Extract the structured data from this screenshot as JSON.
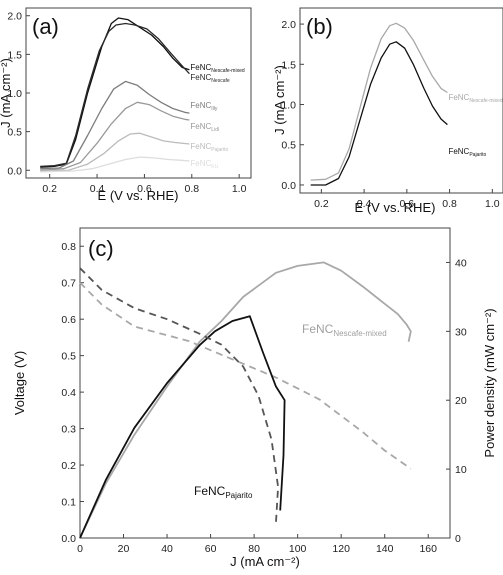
{
  "chart_data": [
    {
      "panel": "(a)",
      "type": "line",
      "xlabel": "E (V vs. RHE)",
      "ylabel": "J (mA cm⁻²)",
      "xlim": [
        0.1,
        1.05
      ],
      "ylim": [
        -0.1,
        2.1
      ],
      "xticks": [
        "0.2",
        "0.4",
        "0.6",
        "0.8",
        "1.0"
      ],
      "yticks": [
        "0.0",
        "0.5",
        "1.0",
        "1.5",
        "2.0"
      ],
      "series": [
        {
          "base": "FeNC",
          "sub": "Nescafe-mixed",
          "color": "#111111",
          "points": [
            [
              0.16,
              0.04
            ],
            [
              0.22,
              0.05
            ],
            [
              0.27,
              0.08
            ],
            [
              0.31,
              0.4
            ],
            [
              0.36,
              1.0
            ],
            [
              0.42,
              1.6
            ],
            [
              0.46,
              1.9
            ],
            [
              0.49,
              1.97
            ],
            [
              0.53,
              1.95
            ],
            [
              0.58,
              1.85
            ],
            [
              0.63,
              1.75
            ],
            [
              0.68,
              1.6
            ],
            [
              0.72,
              1.45
            ],
            [
              0.76,
              1.33
            ],
            [
              0.79,
              1.3
            ]
          ]
        },
        {
          "base": "FeNC",
          "sub": "Nescafe",
          "color": "#2a2a2a",
          "points": [
            [
              0.16,
              0.05
            ],
            [
              0.22,
              0.06
            ],
            [
              0.27,
              0.09
            ],
            [
              0.31,
              0.45
            ],
            [
              0.36,
              1.05
            ],
            [
              0.41,
              1.55
            ],
            [
              0.45,
              1.8
            ],
            [
              0.48,
              1.88
            ],
            [
              0.52,
              1.9
            ],
            [
              0.56,
              1.88
            ],
            [
              0.61,
              1.83
            ],
            [
              0.66,
              1.7
            ],
            [
              0.71,
              1.52
            ],
            [
              0.76,
              1.35
            ],
            [
              0.79,
              1.25
            ]
          ]
        },
        {
          "base": "FeNC",
          "sub": "Illy",
          "color": "#7d7d7d",
          "points": [
            [
              0.16,
              0.02
            ],
            [
              0.24,
              0.03
            ],
            [
              0.3,
              0.12
            ],
            [
              0.36,
              0.45
            ],
            [
              0.42,
              0.8
            ],
            [
              0.47,
              1.05
            ],
            [
              0.52,
              1.15
            ],
            [
              0.57,
              1.1
            ],
            [
              0.62,
              0.98
            ],
            [
              0.67,
              0.88
            ],
            [
              0.72,
              0.8
            ],
            [
              0.77,
              0.75
            ],
            [
              0.79,
              0.74
            ]
          ]
        },
        {
          "base": "FeNC",
          "sub": "Lidl",
          "color": "#999999",
          "points": [
            [
              0.16,
              0.0
            ],
            [
              0.26,
              0.02
            ],
            [
              0.33,
              0.1
            ],
            [
              0.4,
              0.35
            ],
            [
              0.46,
              0.6
            ],
            [
              0.52,
              0.8
            ],
            [
              0.57,
              0.88
            ],
            [
              0.62,
              0.85
            ],
            [
              0.67,
              0.77
            ],
            [
              0.72,
              0.7
            ],
            [
              0.77,
              0.66
            ],
            [
              0.79,
              0.65
            ]
          ]
        },
        {
          "base": "FeNC",
          "sub": "Pajarito",
          "color": "#bbbbbb",
          "points": [
            [
              0.16,
              -0.01
            ],
            [
              0.28,
              0.0
            ],
            [
              0.36,
              0.08
            ],
            [
              0.43,
              0.22
            ],
            [
              0.49,
              0.38
            ],
            [
              0.54,
              0.47
            ],
            [
              0.58,
              0.48
            ],
            [
              0.63,
              0.43
            ],
            [
              0.68,
              0.38
            ],
            [
              0.73,
              0.36
            ],
            [
              0.79,
              0.34
            ]
          ]
        },
        {
          "base": "FeNC",
          "sub": "KU",
          "color": "#dddddd",
          "points": [
            [
              0.16,
              -0.02
            ],
            [
              0.3,
              -0.01
            ],
            [
              0.38,
              0.02
            ],
            [
              0.45,
              0.08
            ],
            [
              0.52,
              0.14
            ],
            [
              0.58,
              0.17
            ],
            [
              0.64,
              0.16
            ],
            [
              0.7,
              0.14
            ],
            [
              0.75,
              0.13
            ],
            [
              0.79,
              0.12
            ]
          ]
        }
      ]
    },
    {
      "panel": "(b)",
      "type": "line",
      "xlabel": "E (V vs. RHE)",
      "ylabel": "J (mA cm⁻²)",
      "xlim": [
        0.1,
        1.05
      ],
      "ylim": [
        -0.1,
        2.2
      ],
      "xticks": [
        "0.2",
        "0.4",
        "0.6",
        "0.8",
        "1.0"
      ],
      "yticks": [
        "0.0",
        "0.5",
        "1.0",
        "1.5",
        "2.0"
      ],
      "series": [
        {
          "base": "FeNC",
          "sub": "Nescafe-mixed",
          "color": "#a8a8a8",
          "points": [
            [
              0.15,
              0.06
            ],
            [
              0.22,
              0.07
            ],
            [
              0.28,
              0.15
            ],
            [
              0.33,
              0.45
            ],
            [
              0.38,
              0.95
            ],
            [
              0.43,
              1.45
            ],
            [
              0.48,
              1.82
            ],
            [
              0.52,
              1.98
            ],
            [
              0.55,
              2.01
            ],
            [
              0.59,
              1.95
            ],
            [
              0.63,
              1.8
            ],
            [
              0.68,
              1.55
            ],
            [
              0.72,
              1.35
            ],
            [
              0.76,
              1.2
            ],
            [
              0.79,
              1.15
            ]
          ]
        },
        {
          "base": "FeNC",
          "sub": "Pajarito",
          "color": "#111111",
          "points": [
            [
              0.15,
              0.0
            ],
            [
              0.22,
              0.0
            ],
            [
              0.28,
              0.08
            ],
            [
              0.33,
              0.35
            ],
            [
              0.38,
              0.8
            ],
            [
              0.43,
              1.25
            ],
            [
              0.48,
              1.58
            ],
            [
              0.52,
              1.75
            ],
            [
              0.55,
              1.78
            ],
            [
              0.59,
              1.7
            ],
            [
              0.63,
              1.5
            ],
            [
              0.68,
              1.2
            ],
            [
              0.72,
              0.98
            ],
            [
              0.76,
              0.82
            ],
            [
              0.79,
              0.75
            ]
          ]
        }
      ]
    },
    {
      "panel": "(c)",
      "type": "line",
      "xlabel": "J (mA cm⁻²)",
      "ylabel": "Voltage (V)",
      "y2label": "Power density (mW cm⁻²)",
      "xlim": [
        0,
        170
      ],
      "ylim": [
        0,
        0.85
      ],
      "y2lim": [
        0,
        45
      ],
      "xticks": [
        "0",
        "20",
        "40",
        "60",
        "80",
        "100",
        "120",
        "140",
        "160"
      ],
      "yticks": [
        "0.0",
        "0.1",
        "0.2",
        "0.3",
        "0.4",
        "0.5",
        "0.6",
        "0.7",
        "0.8"
      ],
      "y2ticks": [
        "0",
        "10",
        "20",
        "30",
        "40"
      ],
      "series": [
        {
          "base": "FeNC",
          "sub": "Nescafe-mixed",
          "color": "#a8a8a8",
          "kind": "power",
          "axis": "y2",
          "points": [
            [
              0,
              0
            ],
            [
              12,
              8
            ],
            [
              25,
              15
            ],
            [
              40,
              22
            ],
            [
              55,
              28.5
            ],
            [
              65,
              31.5
            ],
            [
              75,
              35
            ],
            [
              90,
              38.5
            ],
            [
              100,
              39.5
            ],
            [
              112,
              40
            ],
            [
              120,
              38.8
            ],
            [
              130,
              36.5
            ],
            [
              140,
              34
            ],
            [
              146,
              32.5
            ],
            [
              150,
              31
            ],
            [
              152,
              30
            ],
            [
              151,
              28.5
            ]
          ]
        },
        {
          "base": "FeNC",
          "sub": "Nescafe-mixed",
          "color": "#a8a8a8",
          "kind": "voltage",
          "axis": "y",
          "points": [
            [
              0,
              0.7
            ],
            [
              10,
              0.64
            ],
            [
              25,
              0.58
            ],
            [
              50,
              0.54
            ],
            [
              70,
              0.49
            ],
            [
              90,
              0.44
            ],
            [
              110,
              0.38
            ],
            [
              130,
              0.29
            ],
            [
              140,
              0.24
            ],
            [
              152,
              0.19
            ]
          ]
        },
        {
          "base": "FeNC",
          "sub": "Pajarito",
          "color": "#111111",
          "kind": "power",
          "axis": "y2",
          "points": [
            [
              0,
              0
            ],
            [
              12,
              8.5
            ],
            [
              25,
              16
            ],
            [
              40,
              22.5
            ],
            [
              55,
              28
            ],
            [
              62,
              30
            ],
            [
              70,
              31.5
            ],
            [
              78,
              32.2
            ],
            [
              84,
              27
            ],
            [
              90,
              22
            ],
            [
              94,
              20
            ],
            [
              93.5,
              12
            ],
            [
              92,
              4
            ]
          ]
        },
        {
          "base": "FeNC",
          "sub": "Pajarito",
          "color": "#555555",
          "kind": "voltage",
          "axis": "y",
          "points": [
            [
              0,
              0.74
            ],
            [
              10,
              0.68
            ],
            [
              25,
              0.63
            ],
            [
              40,
              0.6
            ],
            [
              55,
              0.56
            ],
            [
              65,
              0.53
            ],
            [
              75,
              0.47
            ],
            [
              82,
              0.39
            ],
            [
              88,
              0.27
            ],
            [
              91,
              0.14
            ],
            [
              90,
              0.04
            ]
          ]
        }
      ]
    }
  ]
}
